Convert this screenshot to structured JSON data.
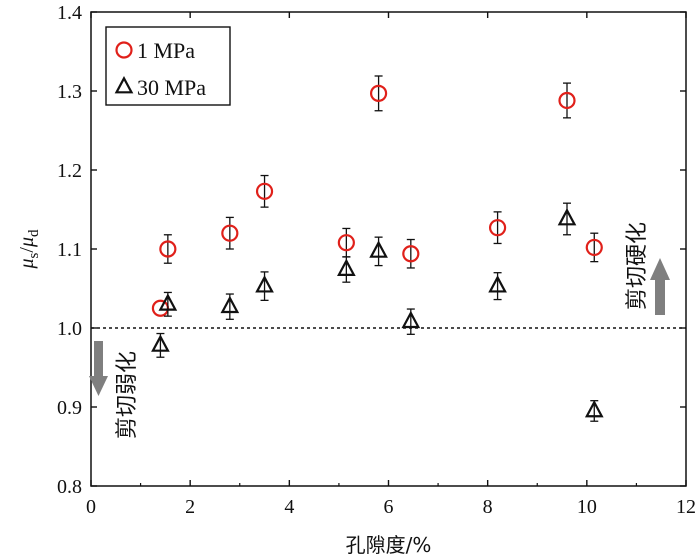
{
  "chart_data": {
    "type": "scatter",
    "title": "",
    "xlabel": "孔隙度/%",
    "ylabel": "μs/μd",
    "ylabel_parts": {
      "mu": "μ",
      "s": "s",
      "slash": "/",
      "d": "d"
    },
    "xlim": [
      0,
      12
    ],
    "ylim": [
      0.8,
      1.4
    ],
    "xticks": [
      0,
      2,
      4,
      6,
      8,
      10,
      12
    ],
    "yticks": [
      0.8,
      0.9,
      1.0,
      1.1,
      1.2,
      1.3,
      1.4
    ],
    "xtick_labels": [
      "0",
      "2",
      "4",
      "6",
      "8",
      "10",
      "12"
    ],
    "ytick_labels": [
      "0.8",
      "0.9",
      "1.0",
      "1.1",
      "1.2",
      "1.3",
      "1.4"
    ],
    "grid": false,
    "legend_position": "top-left",
    "reference_line": {
      "y": 1.0,
      "style": "dashed"
    },
    "series": [
      {
        "name": "1 MPa",
        "marker": "circle",
        "color": "#e0201a",
        "points": [
          {
            "x": 1.4,
            "y": 1.025,
            "err": 0.0
          },
          {
            "x": 1.55,
            "y": 1.1,
            "err": 0.018
          },
          {
            "x": 2.8,
            "y": 1.12,
            "err": 0.02
          },
          {
            "x": 3.5,
            "y": 1.173,
            "err": 0.02
          },
          {
            "x": 5.15,
            "y": 1.108,
            "err": 0.018
          },
          {
            "x": 5.8,
            "y": 1.297,
            "err": 0.022
          },
          {
            "x": 6.45,
            "y": 1.094,
            "err": 0.018
          },
          {
            "x": 8.2,
            "y": 1.127,
            "err": 0.02
          },
          {
            "x": 9.6,
            "y": 1.288,
            "err": 0.022
          },
          {
            "x": 10.15,
            "y": 1.102,
            "err": 0.018
          }
        ]
      },
      {
        "name": "30 MPa",
        "marker": "triangle",
        "color": "#111111",
        "points": [
          {
            "x": 1.4,
            "y": 0.978,
            "err": 0.015
          },
          {
            "x": 1.55,
            "y": 1.03,
            "err": 0.015
          },
          {
            "x": 2.8,
            "y": 1.027,
            "err": 0.016
          },
          {
            "x": 3.5,
            "y": 1.053,
            "err": 0.018
          },
          {
            "x": 5.15,
            "y": 1.074,
            "err": 0.016
          },
          {
            "x": 5.8,
            "y": 1.097,
            "err": 0.018
          },
          {
            "x": 6.45,
            "y": 1.008,
            "err": 0.016
          },
          {
            "x": 8.2,
            "y": 1.053,
            "err": 0.017
          },
          {
            "x": 9.6,
            "y": 1.138,
            "err": 0.02
          },
          {
            "x": 10.15,
            "y": 0.895,
            "err": 0.013
          }
        ]
      }
    ],
    "annotations": [
      {
        "text": "剪切弱化",
        "arrow": "down",
        "position": "bottom-left"
      },
      {
        "text": "剪切硬化",
        "arrow": "up",
        "position": "right"
      }
    ]
  },
  "colors": {
    "series1": "#e0201a",
    "series2": "#111111",
    "arrow": "#7f7f7f",
    "axis": "#111111"
  }
}
